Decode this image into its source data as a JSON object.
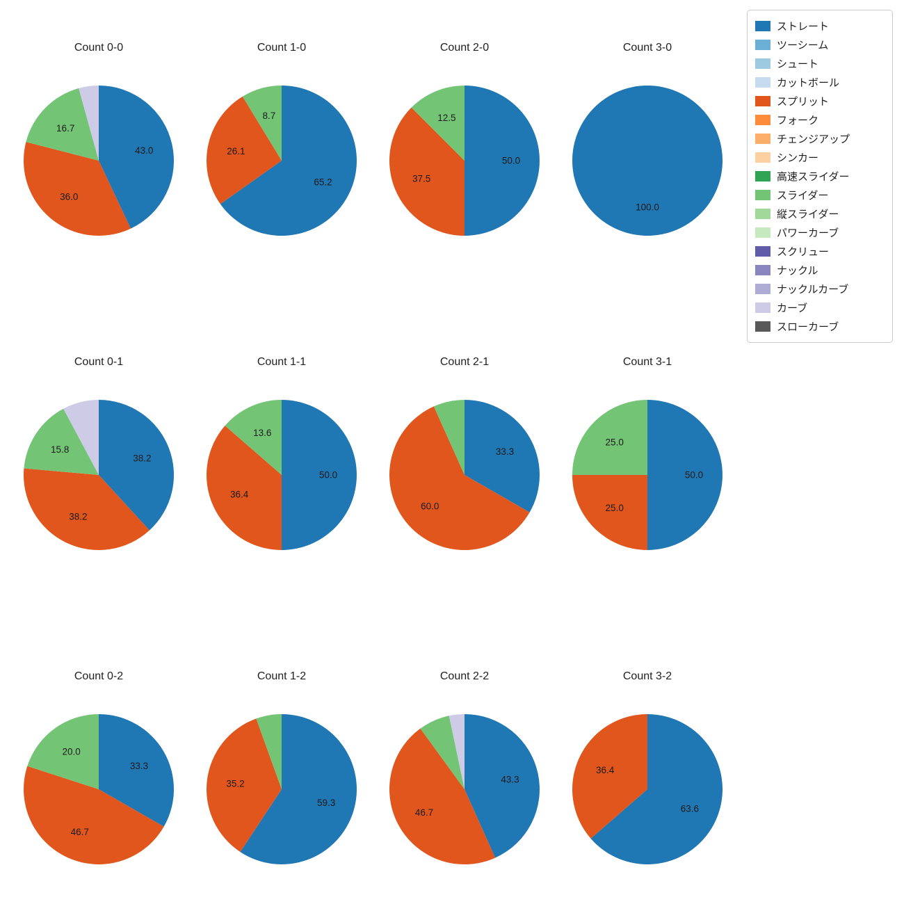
{
  "figure": {
    "background": "#ffffff",
    "label_unit": "%"
  },
  "legend": {
    "items": [
      {
        "label": "ストレート",
        "color": "#1f77b4"
      },
      {
        "label": "ツーシーム",
        "color": "#6baed6"
      },
      {
        "label": "シュート",
        "color": "#9ecae1"
      },
      {
        "label": "カットボール",
        "color": "#c6dbef"
      },
      {
        "label": "スプリット",
        "color": "#e0561c"
      },
      {
        "label": "フォーク",
        "color": "#fd8d3c"
      },
      {
        "label": "チェンジアップ",
        "color": "#fdae6b"
      },
      {
        "label": "シンカー",
        "color": "#fdd0a2"
      },
      {
        "label": "高速スライダー",
        "color": "#31a354"
      },
      {
        "label": "スライダー",
        "color": "#74c476"
      },
      {
        "label": "縦スライダー",
        "color": "#a1d99b"
      },
      {
        "label": "パワーカーブ",
        "color": "#c7e9c0"
      },
      {
        "label": "スクリュー",
        "color": "#605ca8"
      },
      {
        "label": "ナックル",
        "color": "#8985bf"
      },
      {
        "label": "ナックルカーブ",
        "color": "#aeabd5"
      },
      {
        "label": "カーブ",
        "color": "#cecbe6"
      },
      {
        "label": "スローカーブ",
        "color": "#595959"
      }
    ]
  },
  "chart_data": [
    {
      "type": "pie",
      "title": "Count 0-0",
      "start_angle": "top",
      "direction": "clockwise",
      "slices": [
        {
          "name": "ストレート",
          "value": 43.0,
          "label": "43.0"
        },
        {
          "name": "スプリット",
          "value": 36.0,
          "label": "36.0"
        },
        {
          "name": "スライダー",
          "value": 16.7,
          "label": "16.7"
        },
        {
          "name": "カーブ",
          "value": 4.3,
          "label": ""
        }
      ]
    },
    {
      "type": "pie",
      "title": "Count 1-0",
      "start_angle": "top",
      "direction": "clockwise",
      "slices": [
        {
          "name": "ストレート",
          "value": 65.2,
          "label": "65.2"
        },
        {
          "name": "スプリット",
          "value": 26.1,
          "label": "26.1"
        },
        {
          "name": "スライダー",
          "value": 8.7,
          "label": "8.7"
        }
      ]
    },
    {
      "type": "pie",
      "title": "Count 2-0",
      "start_angle": "top",
      "direction": "clockwise",
      "slices": [
        {
          "name": "ストレート",
          "value": 50.0,
          "label": "50.0"
        },
        {
          "name": "スプリット",
          "value": 37.5,
          "label": "37.5"
        },
        {
          "name": "スライダー",
          "value": 12.5,
          "label": "12.5"
        }
      ]
    },
    {
      "type": "pie",
      "title": "Count 3-0",
      "start_angle": "top",
      "direction": "clockwise",
      "slices": [
        {
          "name": "ストレート",
          "value": 100.0,
          "label": "100.0"
        }
      ]
    },
    {
      "type": "pie",
      "title": "Count 0-1",
      "start_angle": "top",
      "direction": "clockwise",
      "slices": [
        {
          "name": "ストレート",
          "value": 38.2,
          "label": "38.2"
        },
        {
          "name": "スプリット",
          "value": 38.2,
          "label": "38.2"
        },
        {
          "name": "スライダー",
          "value": 15.8,
          "label": "15.8"
        },
        {
          "name": "カーブ",
          "value": 7.8,
          "label": ""
        }
      ]
    },
    {
      "type": "pie",
      "title": "Count 1-1",
      "start_angle": "top",
      "direction": "clockwise",
      "slices": [
        {
          "name": "ストレート",
          "value": 50.0,
          "label": "50.0"
        },
        {
          "name": "スプリット",
          "value": 36.4,
          "label": "36.4"
        },
        {
          "name": "スライダー",
          "value": 13.6,
          "label": "13.6"
        }
      ]
    },
    {
      "type": "pie",
      "title": "Count 2-1",
      "start_angle": "top",
      "direction": "clockwise",
      "slices": [
        {
          "name": "ストレート",
          "value": 33.3,
          "label": "33.3"
        },
        {
          "name": "スプリット",
          "value": 60.0,
          "label": "60.0"
        },
        {
          "name": "スライダー",
          "value": 6.7,
          "label": ""
        }
      ]
    },
    {
      "type": "pie",
      "title": "Count 3-1",
      "start_angle": "top",
      "direction": "clockwise",
      "slices": [
        {
          "name": "ストレート",
          "value": 50.0,
          "label": "50.0"
        },
        {
          "name": "スプリット",
          "value": 25.0,
          "label": "25.0"
        },
        {
          "name": "スライダー",
          "value": 25.0,
          "label": "25.0"
        }
      ]
    },
    {
      "type": "pie",
      "title": "Count 0-2",
      "start_angle": "top",
      "direction": "clockwise",
      "slices": [
        {
          "name": "ストレート",
          "value": 33.3,
          "label": "33.3"
        },
        {
          "name": "スプリット",
          "value": 46.7,
          "label": "46.7"
        },
        {
          "name": "スライダー",
          "value": 20.0,
          "label": "20.0"
        }
      ]
    },
    {
      "type": "pie",
      "title": "Count 1-2",
      "start_angle": "top",
      "direction": "clockwise",
      "slices": [
        {
          "name": "ストレート",
          "value": 59.3,
          "label": "59.3"
        },
        {
          "name": "スプリット",
          "value": 35.2,
          "label": "35.2"
        },
        {
          "name": "スライダー",
          "value": 5.5,
          "label": ""
        }
      ]
    },
    {
      "type": "pie",
      "title": "Count 2-2",
      "start_angle": "top",
      "direction": "clockwise",
      "slices": [
        {
          "name": "ストレート",
          "value": 43.3,
          "label": "43.3"
        },
        {
          "name": "スプリット",
          "value": 46.7,
          "label": "46.7"
        },
        {
          "name": "スライダー",
          "value": 6.7,
          "label": ""
        },
        {
          "name": "カーブ",
          "value": 3.3,
          "label": ""
        }
      ]
    },
    {
      "type": "pie",
      "title": "Count 3-2",
      "start_angle": "top",
      "direction": "clockwise",
      "slices": [
        {
          "name": "ストレート",
          "value": 63.6,
          "label": "63.6"
        },
        {
          "name": "スプリット",
          "value": 36.4,
          "label": "36.4"
        }
      ]
    }
  ]
}
